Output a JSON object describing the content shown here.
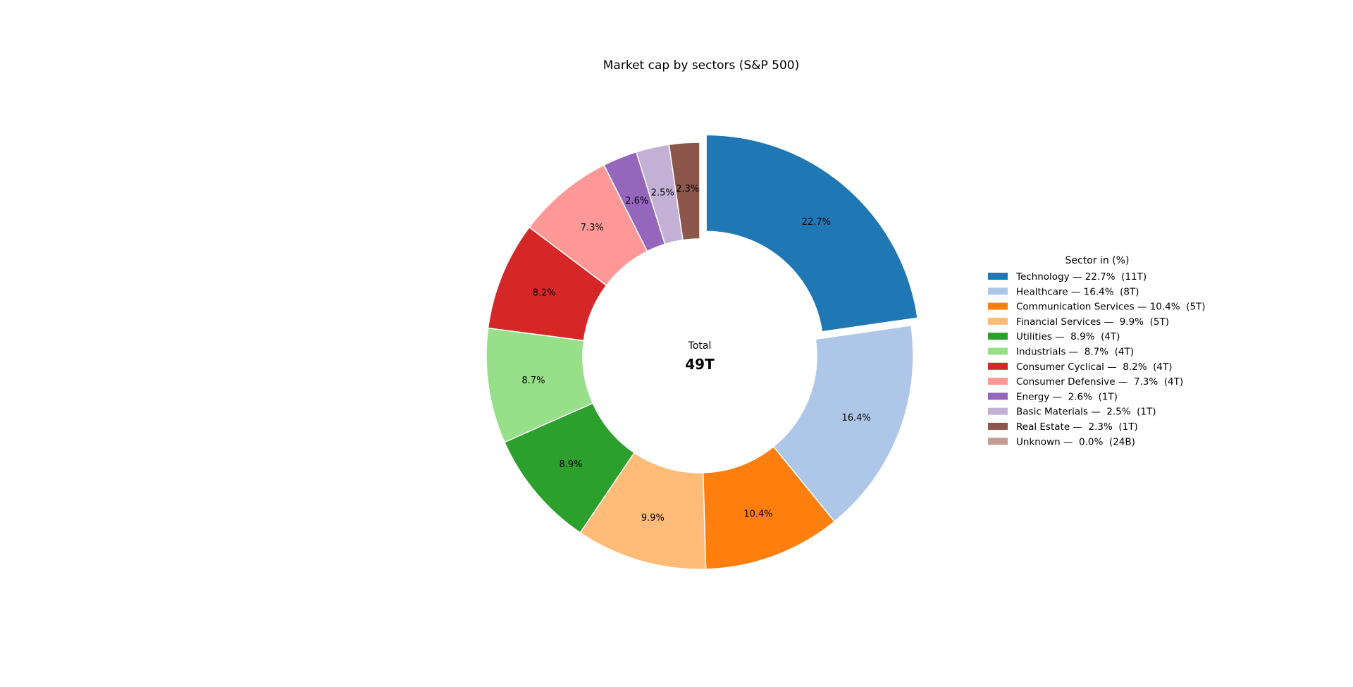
{
  "chart_data": {
    "type": "pie",
    "style": "donut",
    "title": "Market cap by sectors (S&P 500)",
    "center_label": "Total",
    "center_value": "49T",
    "legend_title": "Sector in (%)",
    "legend_placement": "right",
    "exploded_slice": "Technology",
    "start": "top, clockwise",
    "slices": [
      {
        "name": "Technology",
        "percent": 22.7,
        "value_label": "11T",
        "pct_label": "22.7%",
        "legend": "Technology — 22.7%  (11T)",
        "color": "#1f77b4"
      },
      {
        "name": "Healthcare",
        "percent": 16.4,
        "value_label": "8T",
        "pct_label": "16.4%",
        "legend": "Healthcare — 16.4%  (8T)",
        "color": "#aec7e8"
      },
      {
        "name": "Communication Services",
        "percent": 10.4,
        "value_label": "5T",
        "pct_label": "10.4%",
        "legend": "Communication Services — 10.4%  (5T)",
        "color": "#ff7f0e"
      },
      {
        "name": "Financial Services",
        "percent": 9.9,
        "value_label": "5T",
        "pct_label": "9.9%",
        "legend": "Financial Services —  9.9%  (5T)",
        "color": "#ffbb78"
      },
      {
        "name": "Utilities",
        "percent": 8.9,
        "value_label": "4T",
        "pct_label": "8.9%",
        "legend": "Utilities —  8.9%  (4T)",
        "color": "#2ca02c"
      },
      {
        "name": "Industrials",
        "percent": 8.7,
        "value_label": "4T",
        "pct_label": "8.7%",
        "legend": "Industrials —  8.7%  (4T)",
        "color": "#98df8a"
      },
      {
        "name": "Consumer Cyclical",
        "percent": 8.2,
        "value_label": "4T",
        "pct_label": "8.2%",
        "legend": "Consumer Cyclical —  8.2%  (4T)",
        "color": "#d62728"
      },
      {
        "name": "Consumer Defensive",
        "percent": 7.3,
        "value_label": "4T",
        "pct_label": "7.3%",
        "legend": "Consumer Defensive —  7.3%  (4T)",
        "color": "#ff9896"
      },
      {
        "name": "Energy",
        "percent": 2.6,
        "value_label": "1T",
        "pct_label": "2.6%",
        "legend": "Energy —  2.6%  (1T)",
        "color": "#9467bd"
      },
      {
        "name": "Basic Materials",
        "percent": 2.5,
        "value_label": "1T",
        "pct_label": "2.5%",
        "legend": "Basic Materials —  2.5%  (1T)",
        "color": "#c5b0d5"
      },
      {
        "name": "Real Estate",
        "percent": 2.3,
        "value_label": "1T",
        "pct_label": "2.3%",
        "legend": "Real Estate —  2.3%  (1T)",
        "color": "#8c564b"
      },
      {
        "name": "Unknown",
        "percent": 0.0,
        "value_label": "24B",
        "pct_label": "",
        "legend": "Unknown —  0.0%  (24B)",
        "color": "#c49c94"
      }
    ]
  }
}
